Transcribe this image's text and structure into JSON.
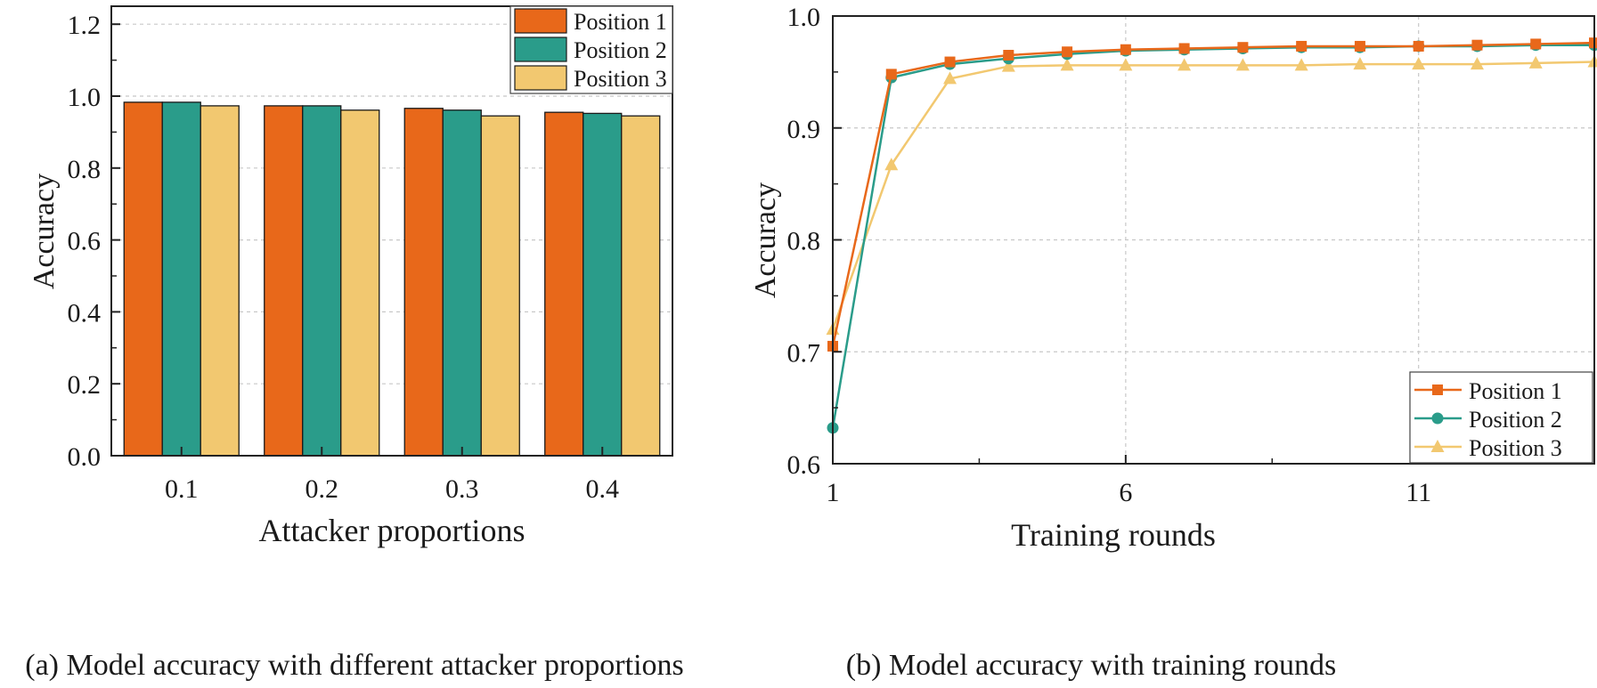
{
  "colors": {
    "pos1": "#E8681A",
    "pos2": "#2A9C8A",
    "pos3": "#F2C870",
    "grid": "#c8c8c8",
    "axis": "#222222"
  },
  "chart_data": [
    {
      "type": "bar",
      "caption": "(a) Model accuracy with different attacker proportions",
      "xlabel": "Attacker proportions",
      "ylabel": "Accuracy",
      "categories": [
        "0.1",
        "0.2",
        "0.3",
        "0.4"
      ],
      "ylim": [
        0,
        1.25
      ],
      "yticks": [
        "0.0",
        "0.2",
        "0.4",
        "0.6",
        "0.8",
        "1.0",
        "1.2"
      ],
      "grid": true,
      "legend_position": "top-right",
      "series": [
        {
          "name": "Position 1",
          "values": [
            0.983,
            0.973,
            0.966,
            0.955
          ]
        },
        {
          "name": "Position 2",
          "values": [
            0.983,
            0.973,
            0.961,
            0.952
          ]
        },
        {
          "name": "Position 3",
          "values": [
            0.973,
            0.961,
            0.945,
            0.945
          ]
        }
      ]
    },
    {
      "type": "line",
      "caption": "(b) Model accuracy with training rounds",
      "xlabel": "Training rounds",
      "ylabel": "Accuracy",
      "x": [
        1,
        2,
        3,
        4,
        5,
        6,
        7,
        8,
        9,
        10,
        11,
        12,
        13,
        14
      ],
      "xticks": [
        "1",
        "6",
        "11"
      ],
      "xlim": [
        1,
        14
      ],
      "ylim": [
        0.6,
        1.0
      ],
      "yticks": [
        "0.6",
        "0.7",
        "0.8",
        "0.9",
        "1.0"
      ],
      "grid": true,
      "legend_position": "bottom-right",
      "series": [
        {
          "name": "Position 1",
          "marker": "square",
          "values": [
            0.705,
            0.948,
            0.959,
            0.965,
            0.968,
            0.97,
            0.971,
            0.972,
            0.973,
            0.973,
            0.973,
            0.974,
            0.975,
            0.976
          ]
        },
        {
          "name": "Position 2",
          "marker": "circle",
          "values": [
            0.632,
            0.945,
            0.957,
            0.962,
            0.966,
            0.969,
            0.97,
            0.971,
            0.972,
            0.972,
            0.973,
            0.973,
            0.974,
            0.974
          ]
        },
        {
          "name": "Position 3",
          "marker": "triangle",
          "values": [
            0.72,
            0.867,
            0.944,
            0.955,
            0.956,
            0.956,
            0.956,
            0.956,
            0.956,
            0.957,
            0.957,
            0.957,
            0.958,
            0.959
          ]
        }
      ]
    }
  ]
}
